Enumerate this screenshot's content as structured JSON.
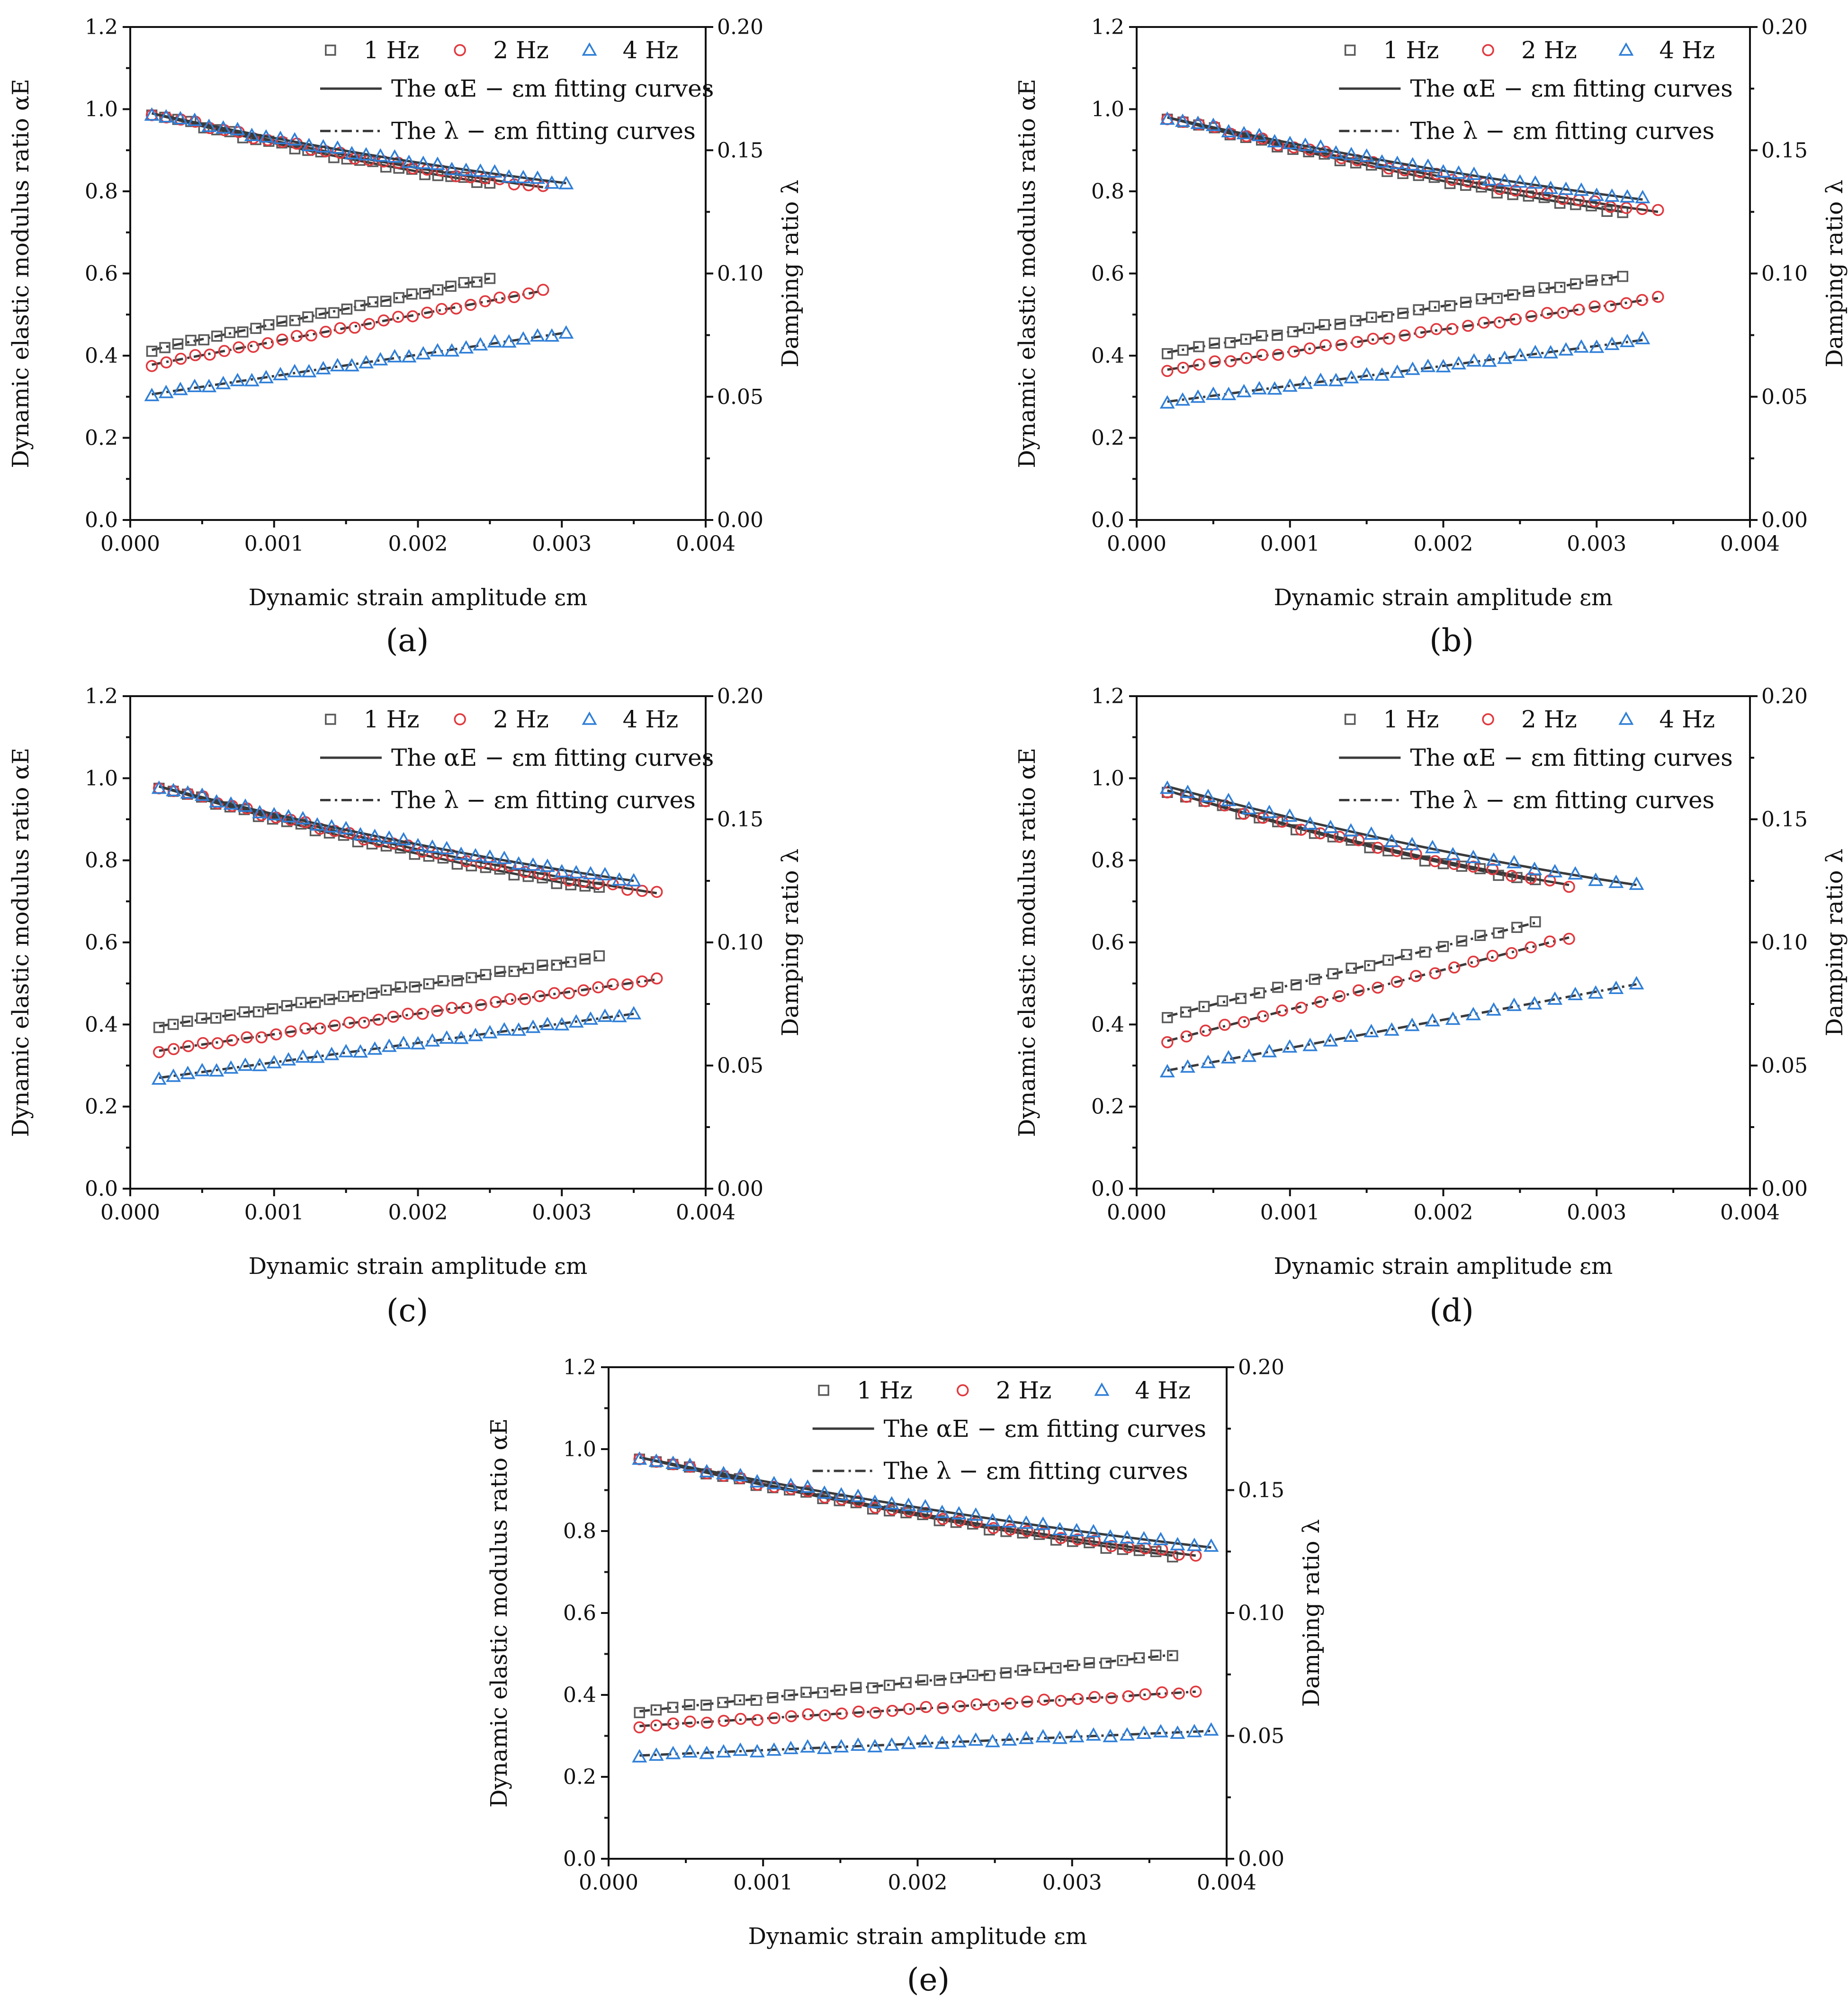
{
  "figure": {
    "xlabel": "Dynamic strain amplitude εm",
    "ylabel_left": "Dynamic elastic modulus ratio αE",
    "ylabel_right": "Damping ratio λ",
    "x_ticks": [
      "0.000",
      "0.001",
      "0.002",
      "0.003",
      "0.004"
    ],
    "y_left_ticks": [
      "0.0",
      "0.2",
      "0.4",
      "0.6",
      "0.8",
      "1.0",
      "1.2"
    ],
    "y_right_ticks": [
      "0.00",
      "0.05",
      "0.10",
      "0.15",
      "0.20"
    ],
    "legend": {
      "series": [
        "1 Hz",
        "2 Hz",
        "4 Hz"
      ],
      "fit_alpha": "The αE − εm  fitting curves",
      "fit_lambda": "The λ − εm fitting curves"
    },
    "colors": {
      "1 Hz": "#5a5a5a",
      "2 Hz": "#e0393e",
      "4 Hz": "#2f7fd8",
      "fit": "#3a3a3a",
      "axis": "#111111"
    }
  },
  "chart_data": [
    {
      "panel": "(a)",
      "label_text": "(a)",
      "type": "scatter",
      "xlim": [
        0,
        0.004
      ],
      "ylim_left": [
        0,
        1.2
      ],
      "ylim_right": [
        0,
        0.2
      ],
      "series": [
        {
          "name": "1 Hz",
          "marker": "square",
          "n": 27,
          "x_start": 0.00015,
          "x_end": 0.0025,
          "alpha_start": 0.99,
          "alpha_end": 0.82,
          "lambda_start": 0.069,
          "lambda_end": 0.098
        },
        {
          "name": "2 Hz",
          "marker": "circle",
          "n": 28,
          "x_start": 0.00015,
          "x_end": 0.00287,
          "alpha_start": 0.99,
          "alpha_end": 0.81,
          "lambda_start": 0.063,
          "lambda_end": 0.093
        },
        {
          "name": "4 Hz",
          "marker": "triangle",
          "n": 30,
          "x_start": 0.00015,
          "x_end": 0.00303,
          "alpha_start": 0.99,
          "alpha_end": 0.82,
          "lambda_start": 0.051,
          "lambda_end": 0.076
        }
      ]
    },
    {
      "panel": "(b)",
      "label_text": "(b)",
      "type": "scatter",
      "xlim": [
        0,
        0.004
      ],
      "ylim_left": [
        0,
        1.2
      ],
      "ylim_right": [
        0,
        0.2
      ],
      "series": [
        {
          "name": "1 Hz",
          "marker": "square",
          "n": 30,
          "x_start": 0.0002,
          "x_end": 0.00317,
          "alpha_start": 0.98,
          "alpha_end": 0.75,
          "lambda_start": 0.068,
          "lambda_end": 0.099
        },
        {
          "name": "2 Hz",
          "marker": "circle",
          "n": 32,
          "x_start": 0.0002,
          "x_end": 0.0034,
          "alpha_start": 0.98,
          "alpha_end": 0.75,
          "lambda_start": 0.061,
          "lambda_end": 0.09
        },
        {
          "name": "4 Hz",
          "marker": "triangle",
          "n": 32,
          "x_start": 0.0002,
          "x_end": 0.0033,
          "alpha_start": 0.98,
          "alpha_end": 0.78,
          "lambda_start": 0.048,
          "lambda_end": 0.073
        }
      ]
    },
    {
      "panel": "(c)",
      "label_text": "(c)",
      "type": "scatter",
      "xlim": [
        0,
        0.004
      ],
      "ylim_left": [
        0,
        1.2
      ],
      "ylim_right": [
        0,
        0.2
      ],
      "series": [
        {
          "name": "1 Hz",
          "marker": "square",
          "n": 32,
          "x_start": 0.0002,
          "x_end": 0.00326,
          "alpha_start": 0.98,
          "alpha_end": 0.73,
          "lambda_start": 0.066,
          "lambda_end": 0.094
        },
        {
          "name": "2 Hz",
          "marker": "circle",
          "n": 35,
          "x_start": 0.0002,
          "x_end": 0.00366,
          "alpha_start": 0.98,
          "alpha_end": 0.72,
          "lambda_start": 0.056,
          "lambda_end": 0.085
        },
        {
          "name": "4 Hz",
          "marker": "triangle",
          "n": 34,
          "x_start": 0.0002,
          "x_end": 0.0035,
          "alpha_start": 0.98,
          "alpha_end": 0.75,
          "lambda_start": 0.045,
          "lambda_end": 0.071
        }
      ]
    },
    {
      "panel": "(d)",
      "label_text": "(d)",
      "type": "scatter",
      "xlim": [
        0,
        0.004
      ],
      "ylim_left": [
        0,
        1.2
      ],
      "ylim_right": [
        0,
        0.2
      ],
      "series": [
        {
          "name": "1 Hz",
          "marker": "square",
          "n": 21,
          "x_start": 0.0002,
          "x_end": 0.0026,
          "alpha_start": 0.97,
          "alpha_end": 0.75,
          "lambda_start": 0.07,
          "lambda_end": 0.108
        },
        {
          "name": "2 Hz",
          "marker": "circle",
          "n": 22,
          "x_start": 0.0002,
          "x_end": 0.00282,
          "alpha_start": 0.97,
          "alpha_end": 0.74,
          "lambda_start": 0.06,
          "lambda_end": 0.102
        },
        {
          "name": "4 Hz",
          "marker": "triangle",
          "n": 24,
          "x_start": 0.0002,
          "x_end": 0.00326,
          "alpha_start": 0.98,
          "alpha_end": 0.74,
          "lambda_start": 0.048,
          "lambda_end": 0.083
        }
      ]
    },
    {
      "panel": "(e)",
      "label_text": "(e)",
      "type": "scatter",
      "xlim": [
        0,
        0.004
      ],
      "ylim_left": [
        0,
        1.2
      ],
      "ylim_right": [
        0,
        0.2
      ],
      "series": [
        {
          "name": "1 Hz",
          "marker": "square",
          "n": 33,
          "x_start": 0.0002,
          "x_end": 0.00365,
          "alpha_start": 0.98,
          "alpha_end": 0.74,
          "lambda_start": 0.06,
          "lambda_end": 0.083
        },
        {
          "name": "2 Hz",
          "marker": "circle",
          "n": 34,
          "x_start": 0.0002,
          "x_end": 0.0038,
          "alpha_start": 0.98,
          "alpha_end": 0.74,
          "lambda_start": 0.054,
          "lambda_end": 0.068
        },
        {
          "name": "4 Hz",
          "marker": "triangle",
          "n": 35,
          "x_start": 0.0002,
          "x_end": 0.0039,
          "alpha_start": 0.98,
          "alpha_end": 0.76,
          "lambda_start": 0.042,
          "lambda_end": 0.052
        }
      ]
    }
  ]
}
